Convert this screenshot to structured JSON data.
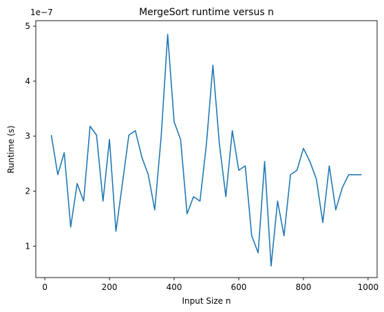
{
  "chart_data": {
    "type": "line",
    "title": "MergeSort runtime versus n",
    "xlabel": "Input Size n",
    "ylabel": "Runtime (s)",
    "y_offset_label": "1e−7",
    "xlim": [
      -28,
      1028
    ],
    "ylim": [
      0.43,
      5.1
    ],
    "xticks": [
      0,
      200,
      400,
      600,
      800,
      1000
    ],
    "xtick_labels": [
      "0",
      "200",
      "400",
      "600",
      "800",
      "1000"
    ],
    "yticks": [
      1,
      2,
      3,
      4,
      5
    ],
    "ytick_labels": [
      "1",
      "2",
      "3",
      "4",
      "5"
    ],
    "grid": false,
    "line_color": "#1f77b4",
    "series": [
      {
        "x": [
          20,
          40,
          60,
          80,
          100,
          120,
          140,
          160,
          180,
          200,
          220,
          240,
          260,
          280,
          300,
          320,
          340,
          360,
          380,
          400,
          420,
          440,
          460,
          480,
          500,
          520,
          540,
          560,
          580,
          600,
          620,
          640,
          660,
          680,
          700,
          720,
          740,
          760,
          780,
          800,
          820,
          840,
          860,
          880,
          900,
          920,
          940,
          960,
          980
        ],
        "values": [
          3.02,
          2.3,
          2.7,
          1.35,
          2.14,
          1.82,
          3.18,
          3.02,
          1.82,
          2.94,
          1.27,
          2.14,
          3.02,
          3.1,
          2.62,
          2.3,
          1.66,
          3.0,
          4.85,
          3.26,
          2.94,
          1.59,
          1.9,
          1.82,
          2.86,
          4.29,
          2.86,
          1.9,
          3.1,
          2.38,
          2.46,
          1.19,
          0.88,
          2.54,
          0.64,
          1.82,
          1.19,
          2.3,
          2.38,
          2.78,
          2.54,
          2.22,
          1.43,
          2.46,
          1.66,
          2.06,
          2.3,
          2.3,
          2.3
        ]
      }
    ]
  }
}
